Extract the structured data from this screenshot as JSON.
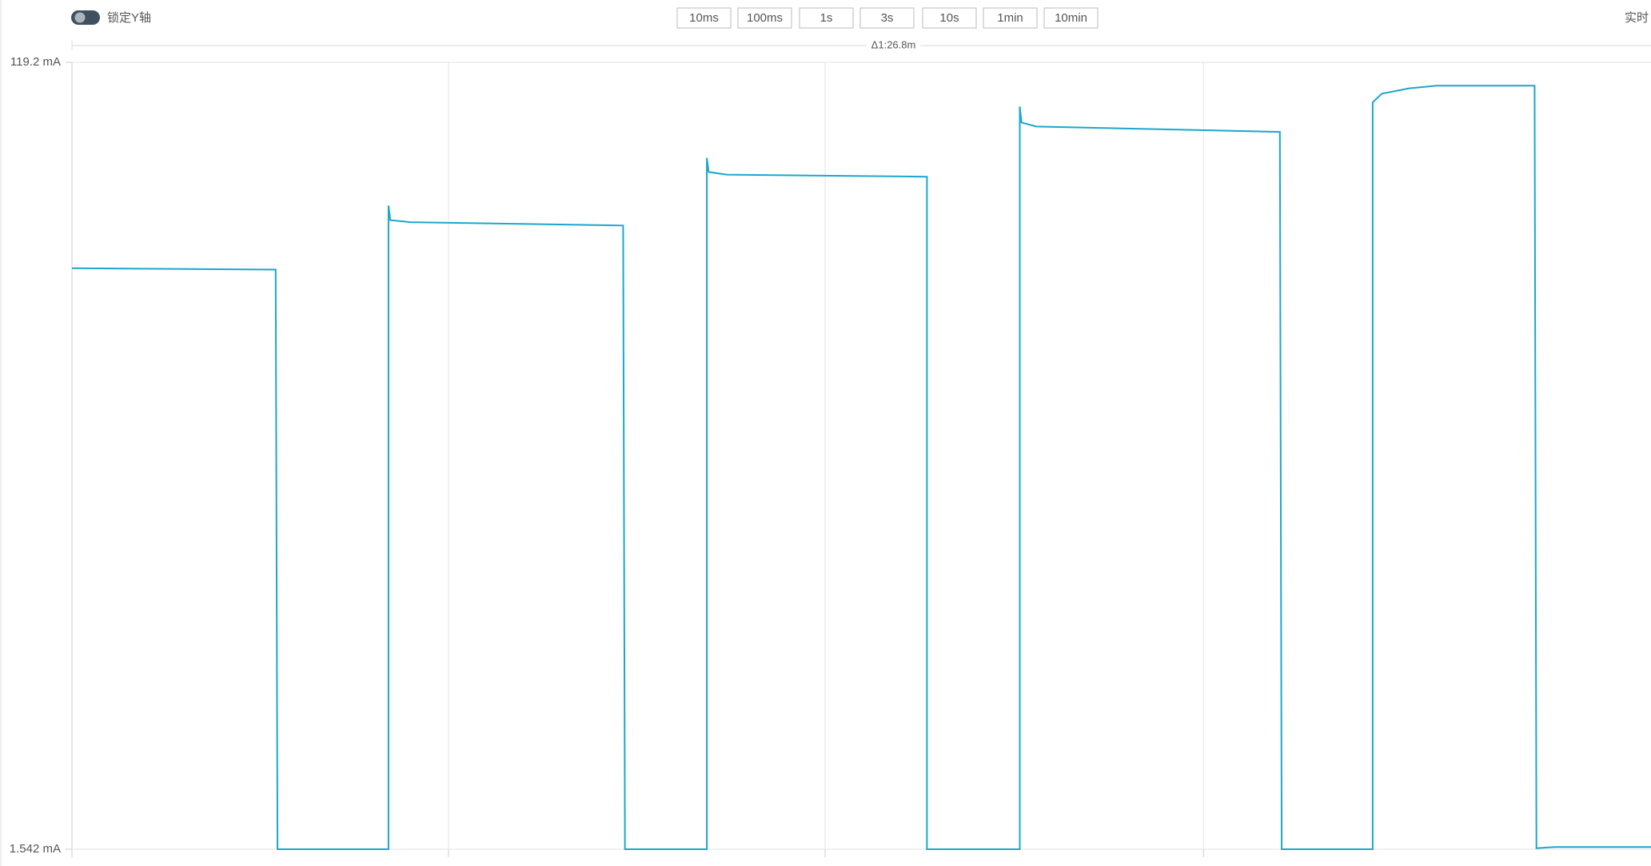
{
  "toolbar": {
    "lock_label": "锁定Y轴",
    "ranges": [
      "10ms",
      "100ms",
      "1s",
      "3s",
      "10s",
      "1min",
      "10min"
    ],
    "live_label": "实时"
  },
  "chart_data": {
    "type": "line",
    "annotation": "Δ1:26.8m",
    "x": [
      0,
      11.2,
      11.3,
      17.4,
      17.4,
      17.5,
      18.6,
      30.3,
      30.4,
      34.9,
      34.9,
      35.0,
      36.0,
      47.0,
      47.0,
      52.1,
      52.1,
      52.2,
      53.0,
      66.4,
      66.5,
      71.5,
      71.5,
      72.0,
      73.5,
      75.0,
      80.4,
      80.5,
      81.5,
      86.8
    ],
    "series": [
      {
        "color": "#1aa7cc",
        "values": [
          88.4,
          88.2,
          1.542,
          1.542,
          97.8,
          95.6,
          95.3,
          94.8,
          1.542,
          1.542,
          104.9,
          102.8,
          102.4,
          102.1,
          1.542,
          1.542,
          112.6,
          110.2,
          109.6,
          108.8,
          1.542,
          1.542,
          113.2,
          114.5,
          115.3,
          115.7,
          115.7,
          1.7,
          1.86,
          1.86
        ]
      }
    ],
    "xlim": [
      0,
      86.8
    ],
    "xticks": [
      20.7,
      41.4,
      62.2
    ],
    "ylim": [
      1.542,
      119.2
    ],
    "yticks": [
      {
        "value": 119.2,
        "label": "119.2 mA"
      },
      {
        "value": 1.542,
        "label": "1.542 mA"
      }
    ],
    "grid": true
  }
}
